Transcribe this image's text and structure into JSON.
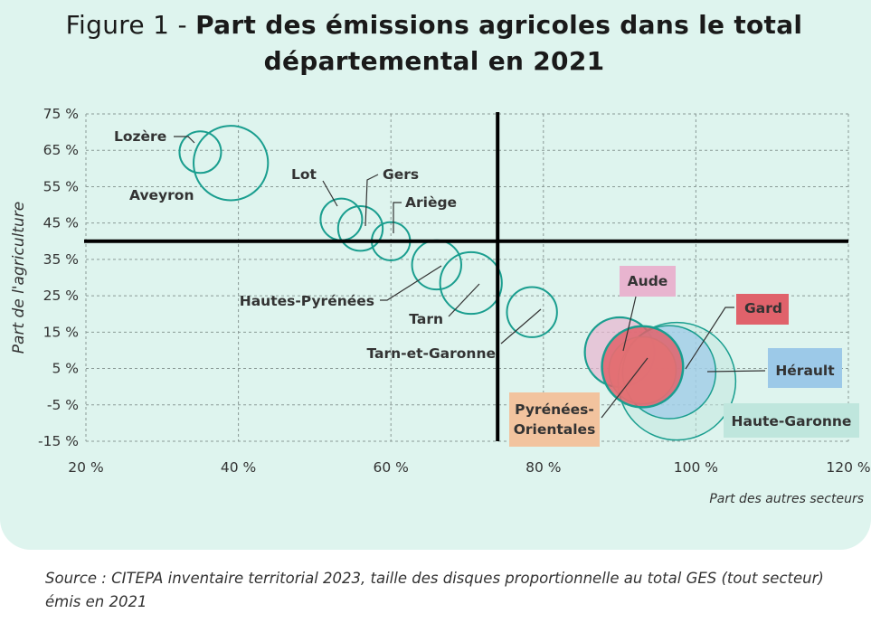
{
  "title": {
    "prefix": "Figure 1 - ",
    "bold_line1": "Part des émissions agricoles dans le total",
    "bold_line2": "départemental en 2021"
  },
  "source": "Source : CITEPA inventaire territorial 2023, taille des disques proportionnelle au total GES (tout secteur) émis en 2021",
  "colors": {
    "background_card": "#def4ee",
    "teal": "#1a9e8f",
    "reference_lines": "#000000",
    "gard": "#e0626b",
    "aude": "#e8b4cf",
    "herault": "#9cc9e8",
    "pyrenees_orientales": "#f2c39e",
    "haute_garonne": "#bfe6dd"
  },
  "chart_data": {
    "type": "scatter",
    "subtype": "bubble",
    "xlabel": "Part des autres secteurs",
    "ylabel": "Part de l'agriculture",
    "xlim": [
      20,
      120
    ],
    "ylim": [
      -15,
      75
    ],
    "x_ticks": [
      "20 %",
      "40 %",
      "60 %",
      "80 %",
      "100 %",
      "120 %"
    ],
    "y_ticks": [
      "75 %",
      "65 %",
      "55 %",
      "45 %",
      "35 %",
      "25 %",
      "15 %",
      "5 %",
      "-5 %",
      "-15 %"
    ],
    "grid": true,
    "reference_lines": {
      "x": 74,
      "y": 40
    },
    "points": [
      {
        "label": "Lozère",
        "x": 35,
        "y": 64.5,
        "size": 1.0,
        "style": "teal"
      },
      {
        "label": "Aveyron",
        "x": 39,
        "y": 61.5,
        "size": 3.2,
        "style": "teal"
      },
      {
        "label": "Lot",
        "x": 53.5,
        "y": 46,
        "size": 1.0,
        "style": "teal"
      },
      {
        "label": "Gers",
        "x": 56,
        "y": 43.5,
        "size": 1.15,
        "style": "teal"
      },
      {
        "label": "Ariège",
        "x": 60,
        "y": 40,
        "size": 0.85,
        "style": "teal"
      },
      {
        "label": "Hautes-Pyrénées",
        "x": 66,
        "y": 33.5,
        "size": 1.4,
        "style": "teal"
      },
      {
        "label": "Tarn",
        "x": 70.5,
        "y": 28.5,
        "size": 2.2,
        "style": "teal"
      },
      {
        "label": "Tarn-et-Garonne",
        "x": 78.5,
        "y": 20.5,
        "size": 1.45,
        "style": "teal"
      },
      {
        "label": "Aude",
        "x": 90,
        "y": 9.5,
        "size": 2.8,
        "style": "aude"
      },
      {
        "label": "Haute-Garonne",
        "x": 97.5,
        "y": 1.5,
        "size": 8.0,
        "style": "haute-garonne"
      },
      {
        "label": "Hérault",
        "x": 96.5,
        "y": 4,
        "size": 5.0,
        "style": "herault"
      },
      {
        "label": "Pyrénées-Orientales",
        "x": 93,
        "y": 4.5,
        "size": 2.6,
        "style": "pyrenees-orientales"
      },
      {
        "label": "Gard",
        "x": 93,
        "y": 5.5,
        "size": 3.8,
        "style": "gard"
      }
    ]
  }
}
